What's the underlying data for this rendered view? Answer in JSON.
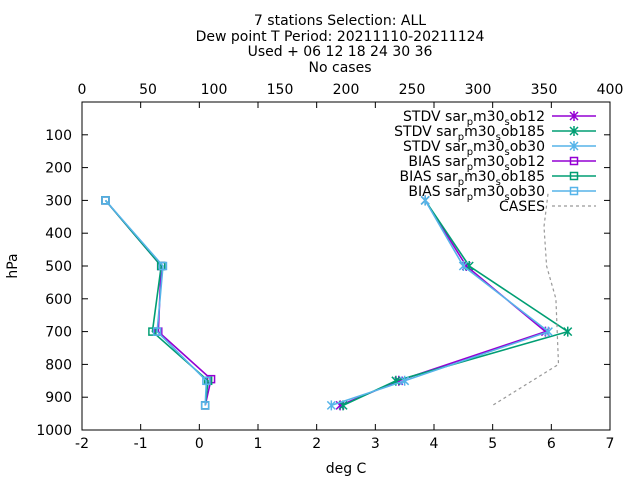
{
  "chart_data": {
    "type": "line",
    "title": {
      "line1": "7 stations Selection: ALL",
      "line2": "Dew point T  Period: 20211110-20211124",
      "line3": "Used  + 06 12 18 24 30 36",
      "line4": "No cases"
    },
    "xlabel": "deg C",
    "ylabel": "hPa",
    "xlim": [
      -2,
      7
    ],
    "x2lim": [
      0,
      400
    ],
    "ylim": [
      1000,
      0
    ],
    "x_ticks": [
      "-2",
      "-1",
      "0",
      "1",
      "2",
      "3",
      "4",
      "5",
      "6",
      "7"
    ],
    "x2_ticks": [
      "0",
      "50",
      "100",
      "150",
      "200",
      "250",
      "300",
      "350",
      "400"
    ],
    "y_ticks": [
      "100",
      "200",
      "300",
      "400",
      "500",
      "600",
      "700",
      "800",
      "900",
      "1000"
    ],
    "grid": false,
    "legend_position": "top-right",
    "series": [
      {
        "name": "STDV sar_p m30_s ob12",
        "label_main": "STDV sar",
        "label_sub1": "p",
        "label_mid": "m30",
        "label_sub2": "s",
        "label_end": "ob12",
        "color": "#9400d3",
        "marker": "x",
        "points": [
          [
            3.85,
            300
          ],
          [
            4.55,
            500
          ],
          [
            5.9,
            700
          ],
          [
            3.4,
            850
          ],
          [
            2.4,
            925
          ]
        ]
      },
      {
        "name": "STDV sar_p m30_s ob185",
        "label_main": "STDV sar",
        "label_sub1": "p",
        "label_mid": "m30",
        "label_sub2": "s",
        "label_end": "ob185",
        "color": "#009e73",
        "marker": "x",
        "points": [
          [
            3.85,
            300
          ],
          [
            4.6,
            500
          ],
          [
            6.28,
            700
          ],
          [
            3.35,
            850
          ],
          [
            2.45,
            925
          ]
        ]
      },
      {
        "name": "STDV sar_p m30_s ob30",
        "label_main": "STDV sar",
        "label_sub1": "p",
        "label_mid": "m30",
        "label_sub2": "s",
        "label_end": "ob30",
        "color": "#56b4e9",
        "marker": "x",
        "points": [
          [
            3.85,
            300
          ],
          [
            4.5,
            500
          ],
          [
            5.95,
            700
          ],
          [
            3.5,
            850
          ],
          [
            2.25,
            925
          ]
        ]
      },
      {
        "name": "BIAS sar_p m30_s ob12",
        "label_main": "BIAS sar",
        "label_sub1": "p",
        "label_mid": "m30",
        "label_sub2": "s",
        "label_end": "ob12",
        "color": "#9400d3",
        "marker": "square",
        "points": [
          [
            -1.6,
            300
          ],
          [
            -0.65,
            500
          ],
          [
            -0.7,
            700
          ],
          [
            0.2,
            845
          ],
          [
            0.1,
            925
          ]
        ]
      },
      {
        "name": "BIAS sar_p m30_s ob185",
        "label_main": "BIAS sar",
        "label_sub1": "p",
        "label_mid": "m30",
        "label_sub2": "s",
        "label_end": "ob185",
        "color": "#009e73",
        "marker": "square",
        "points": [
          [
            -1.6,
            300
          ],
          [
            -0.65,
            500
          ],
          [
            -0.8,
            700
          ],
          [
            0.15,
            850
          ],
          [
            0.1,
            925
          ]
        ]
      },
      {
        "name": "BIAS sar_p m30_s ob30",
        "label_main": "BIAS sar",
        "label_sub1": "p",
        "label_mid": "m30",
        "label_sub2": "s",
        "label_end": "ob30",
        "color": "#56b4e9",
        "marker": "square",
        "points": [
          [
            -1.6,
            300
          ],
          [
            -0.62,
            500
          ],
          [
            -0.72,
            700
          ],
          [
            0.12,
            850
          ],
          [
            0.1,
            925
          ]
        ]
      },
      {
        "name": "CASES",
        "label_main": "CASES",
        "color": "#999999",
        "marker": "none",
        "dashed": true,
        "axis": "x2",
        "points": [
          [
            353,
            280
          ],
          [
            350,
            380
          ],
          [
            352,
            500
          ],
          [
            359,
            600
          ],
          [
            361,
            800
          ],
          [
            311,
            925
          ]
        ]
      }
    ]
  }
}
